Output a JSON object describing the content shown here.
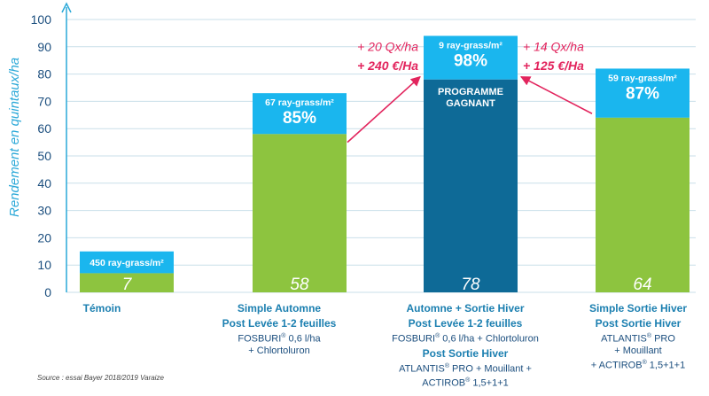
{
  "chart_data": {
    "type": "bar",
    "ylabel": "Rendement en quintaux/ha",
    "ylim": [
      0,
      100
    ],
    "yticks": [
      0,
      10,
      20,
      30,
      40,
      50,
      60,
      70,
      80,
      90,
      100
    ],
    "grid": true,
    "categories": [
      "Témoin",
      "Simple Automne",
      "Automne + Sortie Hiver",
      "Simple Sortie Hiver"
    ],
    "values": [
      7,
      58,
      78,
      64
    ],
    "value_labels": [
      "7",
      "58",
      "78",
      "64"
    ],
    "caps": [
      {
        "top": 15,
        "line1": "450 ray-grass/m²",
        "line2": ""
      },
      {
        "top": 73,
        "line1": "67 ray-grass/m²",
        "line2": "85%"
      },
      {
        "top": 94,
        "line1": "9 ray-grass/m²",
        "line2": "98%"
      },
      {
        "top": 82,
        "line1": "59 ray-grass/m²",
        "line2": "87%"
      }
    ],
    "highlight_text": [
      "PROGRAMME",
      "GAGNANT"
    ],
    "gains": [
      {
        "line1": "+ 20 Qx/ha",
        "line2": "+ 240 €/Ha"
      },
      {
        "line1": "+ 14 Qx/ha",
        "line2": "+ 125 €/Ha"
      }
    ],
    "colors": {
      "bar": "#8dc43f",
      "highlight_bar": "#0e6a97",
      "cap": "#1ab6ee",
      "arrow": "#e2245d",
      "axis": "#2aa8d8",
      "grid": "#c9dfe9"
    }
  },
  "descriptions": [
    {
      "name": "Témoin",
      "sub": "",
      "lines": []
    },
    {
      "name": "Simple Automne",
      "sub": "Post Levée 1-2 feuilles",
      "lines": [
        "FOSBURI® 0,6 l/ha",
        "+ Chlortoluron"
      ]
    },
    {
      "name": "Automne + Sortie Hiver",
      "sub": "Post Levée 1-2 feuilles",
      "lines": [
        "FOSBURI® 0,6 l/ha + Chlortoluron"
      ],
      "sub2": "Post Sortie Hiver",
      "lines2": [
        "ATLANTIS® PRO + Mouillant +",
        "ACTIROB® 1,5+1+1"
      ]
    },
    {
      "name": "Simple Sortie Hiver",
      "sub": "Post Sortie Hiver",
      "lines": [
        "ATLANTIS® PRO",
        "+ Mouillant",
        "+ ACTIROB® 1,5+1+1"
      ]
    }
  ],
  "source": "Source : essai Bayer 2018/2019 Varaize"
}
